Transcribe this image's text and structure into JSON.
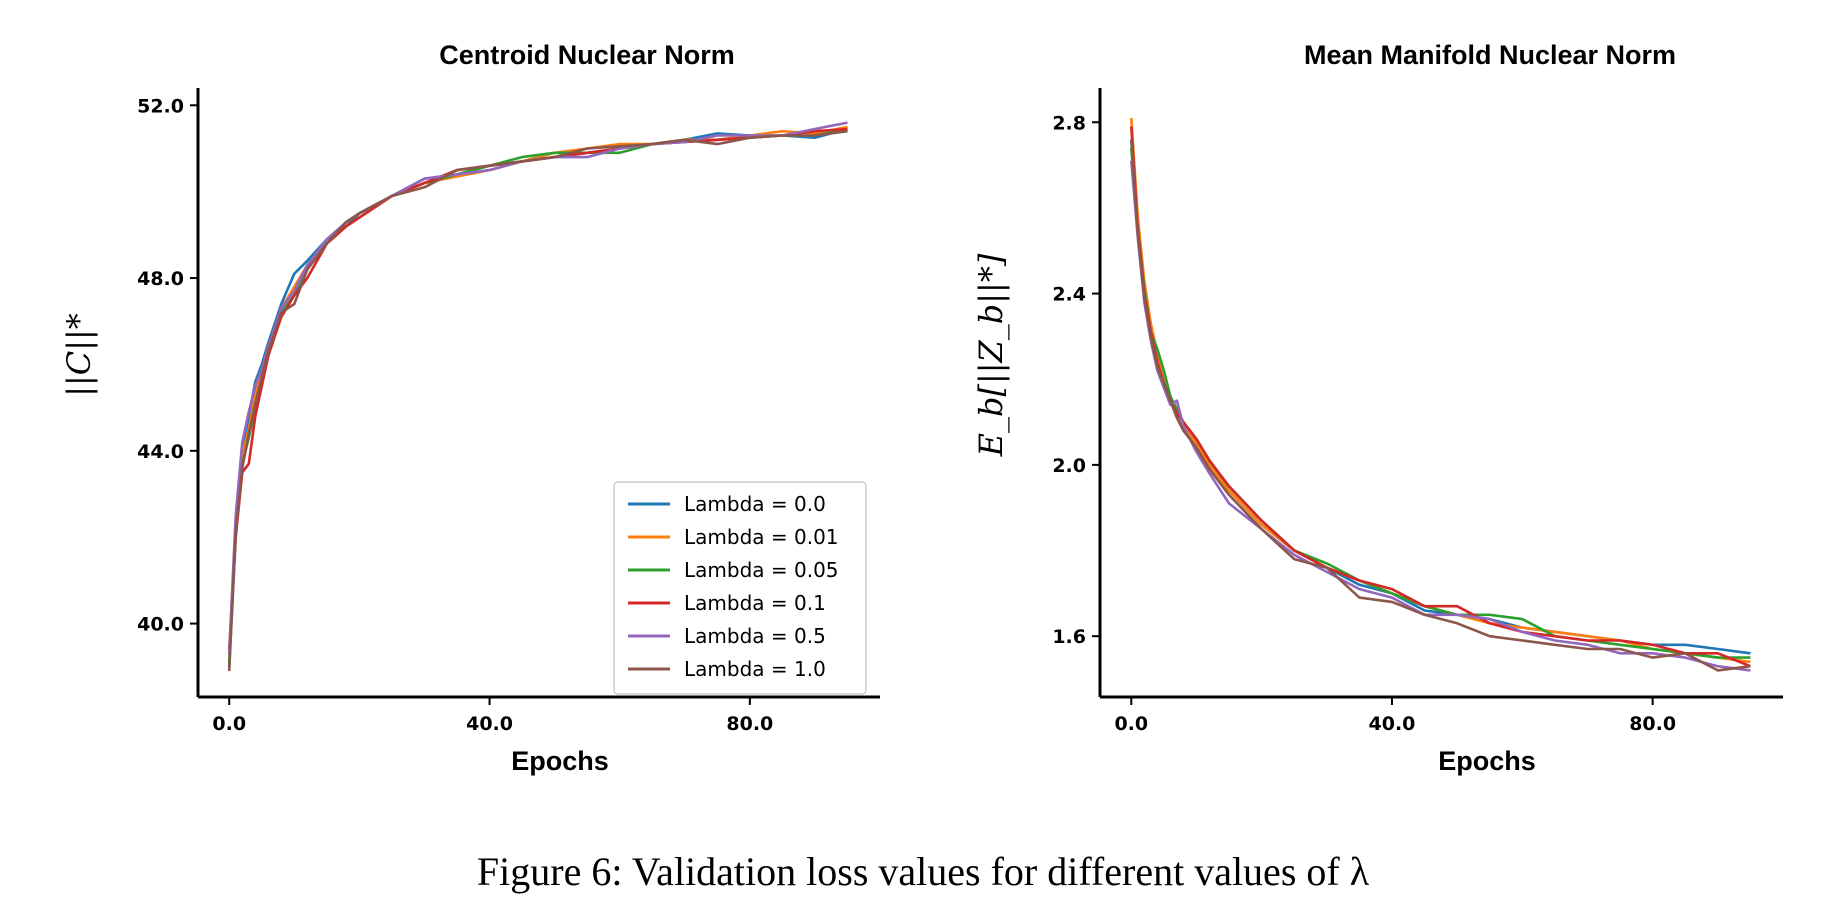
{
  "caption": "Figure 6: Validation loss values for different values of λ",
  "colors": {
    "axis": "#000000",
    "background": "#ffffff"
  },
  "chart_data": [
    {
      "type": "line",
      "title": "Centroid Nuclear Norm",
      "xlabel": "Epochs",
      "ylabel": "||C||*",
      "xlim": [
        -4.8,
        100
      ],
      "ylim": [
        38.3,
        52.4
      ],
      "xticks": [
        0,
        40,
        80
      ],
      "xtick_labels": [
        "0.0",
        "40.0",
        "80.0"
      ],
      "yticks": [
        40,
        44,
        48,
        52
      ],
      "ytick_labels": [
        "40.0",
        "44.0",
        "48.0",
        "52.0"
      ],
      "legend": {
        "placement": "lower-right"
      },
      "series": [
        {
          "name": "Lambda = 0.0",
          "color": "#1f77b4",
          "x": [
            0,
            1,
            2,
            3,
            4,
            5,
            6,
            8,
            10,
            12,
            15,
            18,
            20,
            25,
            30,
            35,
            40,
            45,
            50,
            55,
            60,
            65,
            70,
            75,
            80,
            85,
            90,
            95
          ],
          "y": [
            39.0,
            42.0,
            43.8,
            44.8,
            45.6,
            46.0,
            46.5,
            47.4,
            48.1,
            48.4,
            48.9,
            49.2,
            49.5,
            49.9,
            50.3,
            50.4,
            50.6,
            50.7,
            50.8,
            50.9,
            51.0,
            51.1,
            51.2,
            51.35,
            51.3,
            51.3,
            51.25,
            51.45
          ]
        },
        {
          "name": "Lambda = 0.01",
          "color": "#ff7f0e",
          "x": [
            0,
            1,
            2,
            3,
            4,
            5,
            6,
            8,
            10,
            12,
            15,
            18,
            20,
            25,
            30,
            35,
            40,
            45,
            50,
            55,
            60,
            65,
            70,
            75,
            80,
            85,
            90,
            95
          ],
          "y": [
            39.3,
            42.3,
            43.9,
            44.5,
            45.3,
            45.8,
            46.4,
            47.3,
            47.8,
            48.3,
            48.8,
            49.2,
            49.4,
            49.9,
            50.2,
            50.35,
            50.5,
            50.7,
            50.9,
            51.0,
            51.1,
            51.1,
            51.2,
            51.2,
            51.3,
            51.4,
            51.35,
            51.5
          ]
        },
        {
          "name": "Lambda = 0.05",
          "color": "#2ca02c",
          "x": [
            0,
            1,
            2,
            3,
            4,
            5,
            6,
            8,
            10,
            12,
            15,
            18,
            20,
            25,
            30,
            35,
            40,
            45,
            50,
            55,
            60,
            65,
            70,
            75,
            80,
            85,
            90,
            95
          ],
          "y": [
            39.1,
            42.2,
            43.7,
            44.3,
            45.0,
            45.7,
            46.3,
            47.2,
            47.6,
            48.2,
            48.8,
            49.3,
            49.5,
            49.9,
            50.2,
            50.4,
            50.6,
            50.8,
            50.9,
            50.9,
            50.9,
            51.1,
            51.15,
            51.2,
            51.25,
            51.3,
            51.3,
            51.45
          ]
        },
        {
          "name": "Lambda = 0.1",
          "color": "#d62728",
          "x": [
            0,
            1,
            2,
            3,
            4,
            5,
            6,
            8,
            10,
            12,
            15,
            18,
            20,
            25,
            30,
            35,
            40,
            45,
            50,
            55,
            60,
            65,
            70,
            75,
            80,
            85,
            90,
            95
          ],
          "y": [
            39.4,
            42.0,
            43.5,
            43.7,
            44.8,
            45.5,
            46.2,
            47.1,
            47.6,
            48.0,
            48.8,
            49.2,
            49.4,
            49.9,
            50.2,
            50.5,
            50.6,
            50.7,
            50.8,
            50.9,
            51.0,
            51.1,
            51.15,
            51.2,
            51.25,
            51.3,
            51.4,
            51.45
          ]
        },
        {
          "name": "Lambda = 0.5",
          "color": "#9467bd",
          "x": [
            0,
            1,
            2,
            3,
            4,
            5,
            6,
            8,
            10,
            12,
            15,
            18,
            20,
            25,
            30,
            35,
            40,
            45,
            50,
            55,
            60,
            65,
            70,
            75,
            80,
            85,
            90,
            95
          ],
          "y": [
            39.3,
            42.5,
            44.2,
            44.9,
            45.5,
            45.9,
            46.4,
            47.3,
            47.7,
            48.3,
            48.9,
            49.3,
            49.5,
            49.9,
            50.3,
            50.4,
            50.5,
            50.7,
            50.8,
            50.8,
            51.0,
            51.1,
            51.15,
            51.3,
            51.3,
            51.3,
            51.45,
            51.6
          ]
        },
        {
          "name": "Lambda = 1.0",
          "color": "#8c564b",
          "x": [
            0,
            1,
            2,
            3,
            4,
            5,
            6,
            8,
            10,
            12,
            15,
            18,
            20,
            25,
            30,
            35,
            40,
            45,
            50,
            55,
            60,
            65,
            70,
            75,
            80,
            85,
            90,
            95
          ],
          "y": [
            38.9,
            42.1,
            43.6,
            44.4,
            45.1,
            45.7,
            46.3,
            47.2,
            47.4,
            48.2,
            48.8,
            49.3,
            49.5,
            49.9,
            50.1,
            50.5,
            50.6,
            50.7,
            50.8,
            51.0,
            51.05,
            51.1,
            51.2,
            51.1,
            51.25,
            51.3,
            51.3,
            51.4
          ]
        }
      ]
    },
    {
      "type": "line",
      "title": "Mean Manifold Nuclear Norm",
      "xlabel": "Epochs",
      "ylabel": "E_b[||Z_b||*]",
      "xlim": [
        -4.8,
        100
      ],
      "ylim": [
        1.458,
        2.88
      ],
      "xticks": [
        0,
        40,
        80
      ],
      "xtick_labels": [
        "0.0",
        "40.0",
        "80.0"
      ],
      "yticks": [
        1.6,
        2.0,
        2.4,
        2.8
      ],
      "ytick_labels": [
        "1.6",
        "2.0",
        "2.4",
        "2.8"
      ],
      "series": [
        {
          "name": "Lambda = 0.0",
          "color": "#1f77b4",
          "x": [
            0,
            1,
            2,
            3,
            4,
            5,
            6,
            7,
            8,
            10,
            12,
            15,
            20,
            25,
            30,
            35,
            40,
            45,
            50,
            55,
            60,
            65,
            70,
            75,
            80,
            85,
            90,
            95
          ],
          "y": [
            2.76,
            2.55,
            2.4,
            2.31,
            2.25,
            2.2,
            2.16,
            2.12,
            2.09,
            2.05,
            2.0,
            1.94,
            1.86,
            1.8,
            1.76,
            1.72,
            1.7,
            1.66,
            1.65,
            1.64,
            1.62,
            1.61,
            1.6,
            1.59,
            1.58,
            1.58,
            1.57,
            1.56
          ]
        },
        {
          "name": "Lambda = 0.01",
          "color": "#ff7f0e",
          "x": [
            0,
            1,
            2,
            3,
            4,
            5,
            6,
            7,
            8,
            10,
            12,
            15,
            20,
            25,
            30,
            35,
            40,
            45,
            50,
            55,
            60,
            65,
            70,
            75,
            80,
            85,
            90,
            95
          ],
          "y": [
            2.81,
            2.58,
            2.43,
            2.33,
            2.26,
            2.2,
            2.15,
            2.11,
            2.09,
            2.05,
            2.0,
            1.94,
            1.86,
            1.8,
            1.76,
            1.73,
            1.7,
            1.67,
            1.65,
            1.63,
            1.62,
            1.61,
            1.6,
            1.59,
            1.57,
            1.56,
            1.55,
            1.54
          ]
        },
        {
          "name": "Lambda = 0.05",
          "color": "#2ca02c",
          "x": [
            0,
            1,
            2,
            3,
            4,
            5,
            6,
            7,
            8,
            10,
            12,
            15,
            20,
            25,
            30,
            35,
            40,
            45,
            50,
            55,
            60,
            65,
            70,
            75,
            80,
            85,
            90,
            95
          ],
          "y": [
            2.74,
            2.55,
            2.41,
            2.31,
            2.27,
            2.22,
            2.16,
            2.13,
            2.1,
            2.06,
            2.01,
            1.95,
            1.87,
            1.8,
            1.77,
            1.73,
            1.7,
            1.67,
            1.65,
            1.65,
            1.64,
            1.6,
            1.59,
            1.58,
            1.57,
            1.56,
            1.55,
            1.55
          ]
        },
        {
          "name": "Lambda = 0.1",
          "color": "#d62728",
          "x": [
            0,
            1,
            2,
            3,
            4,
            5,
            6,
            7,
            8,
            10,
            12,
            15,
            20,
            25,
            30,
            35,
            40,
            45,
            50,
            55,
            60,
            65,
            70,
            75,
            80,
            85,
            90,
            95
          ],
          "y": [
            2.79,
            2.55,
            2.4,
            2.31,
            2.24,
            2.19,
            2.15,
            2.12,
            2.1,
            2.06,
            2.01,
            1.95,
            1.87,
            1.8,
            1.76,
            1.73,
            1.71,
            1.67,
            1.67,
            1.63,
            1.61,
            1.6,
            1.59,
            1.59,
            1.58,
            1.56,
            1.56,
            1.53
          ]
        },
        {
          "name": "Lambda = 0.5",
          "color": "#9467bd",
          "x": [
            0,
            1,
            2,
            3,
            4,
            5,
            6,
            7,
            8,
            10,
            12,
            15,
            20,
            25,
            30,
            35,
            40,
            45,
            50,
            55,
            60,
            65,
            70,
            75,
            80,
            85,
            90,
            95
          ],
          "y": [
            2.71,
            2.53,
            2.38,
            2.29,
            2.22,
            2.18,
            2.14,
            2.15,
            2.09,
            2.03,
            1.98,
            1.91,
            1.85,
            1.79,
            1.75,
            1.71,
            1.69,
            1.65,
            1.65,
            1.64,
            1.61,
            1.59,
            1.58,
            1.56,
            1.56,
            1.55,
            1.53,
            1.52
          ]
        },
        {
          "name": "Lambda = 1.0",
          "color": "#8c564b",
          "x": [
            0,
            1,
            2,
            3,
            4,
            5,
            6,
            7,
            8,
            10,
            12,
            15,
            20,
            25,
            30,
            35,
            40,
            45,
            50,
            55,
            60,
            65,
            70,
            75,
            80,
            85,
            90,
            95
          ],
          "y": [
            2.76,
            2.54,
            2.39,
            2.3,
            2.23,
            2.19,
            2.15,
            2.11,
            2.08,
            2.04,
            1.99,
            1.93,
            1.85,
            1.78,
            1.76,
            1.69,
            1.68,
            1.65,
            1.63,
            1.6,
            1.59,
            1.58,
            1.57,
            1.57,
            1.55,
            1.56,
            1.52,
            1.53
          ]
        }
      ]
    }
  ]
}
